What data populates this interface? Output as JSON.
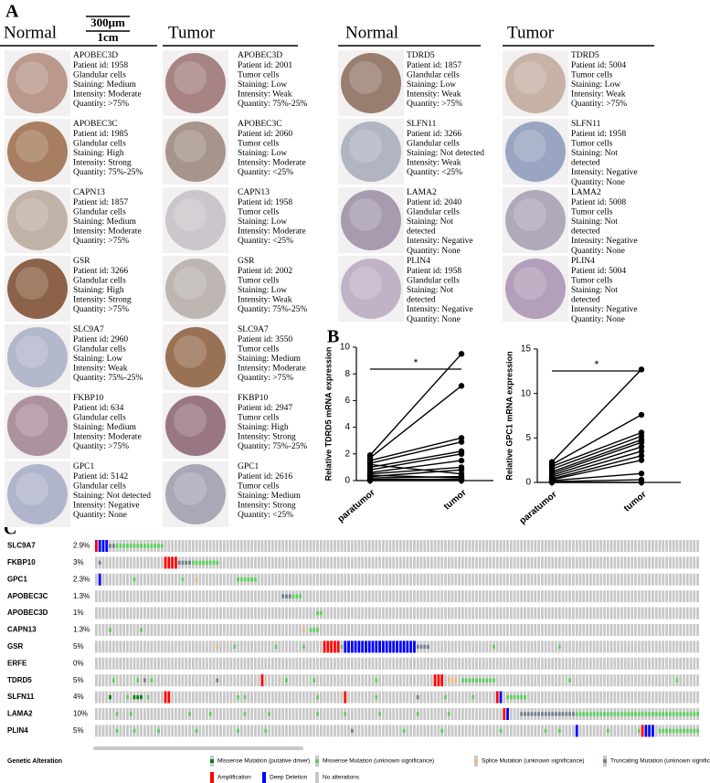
{
  "panel_a": {
    "label": "A",
    "scale_bar": [
      "300μm",
      "1cm"
    ],
    "groups": [
      {
        "header": "Normal",
        "samples": [
          {
            "color": "#b08a7a",
            "lines": [
              "APOBEC3D",
              "Patient id: 1958",
              "Glandular cells",
              "Staining: Medium",
              "Intensity: Moderate",
              "Quantity: >75%"
            ]
          },
          {
            "color": "#9a6a48",
            "lines": [
              "APOBEC3C",
              "Patient id: 1985",
              "Glandular cells",
              "Staining: High",
              "Intensity: Strong",
              "Quantity: 75%-25%"
            ]
          },
          {
            "color": "#b8a89a",
            "lines": [
              "CAPN13",
              "Patient id: 1857",
              "Glandular cells",
              "Staining: Medium",
              "Intensity: Moderate",
              "Quantity: >75%"
            ]
          },
          {
            "color": "#7a4a2a",
            "lines": [
              "GSR",
              "Patient id: 3266",
              "Glandular cells",
              "Staining: High",
              "Intensity: Strong",
              "Quantity: >75%"
            ]
          },
          {
            "color": "#a8aec4",
            "lines": [
              "SLC9A7",
              "Patient id: 2960",
              "Glandular cells",
              "Staining: Low",
              "Intensity: Weak",
              "Quantity: 75%-25%"
            ]
          },
          {
            "color": "#a08090",
            "lines": [
              "FKBP10",
              "Patient id: 634",
              "Glandular cells",
              "Staining: Medium",
              "Intensity: Moderate",
              "Quantity: >75%"
            ]
          },
          {
            "color": "#a4aac4",
            "lines": [
              "GPC1",
              "Patient id: 5142",
              "Glandular cells",
              "Staining: Not detected",
              "Intensity: Negative",
              "Quantity: None"
            ]
          }
        ]
      },
      {
        "header": "Tumor",
        "samples": [
          {
            "color": "#9a7070",
            "lines": [
              "APOBEC3D",
              "Patient id: 2001",
              "Tumor cells",
              "Staining: Low",
              "Intensity: Weak",
              "Quantity: 75%-25%"
            ]
          },
          {
            "color": "#9a8478",
            "lines": [
              "APOBEC3C",
              "Patient id: 2060",
              "Tumor cells",
              "Staining: Low",
              "Intensity: Moderate",
              "Quantity: <25%"
            ]
          },
          {
            "color": "#c4bec4",
            "lines": [
              "CAPN13",
              "Patient id: 1958",
              "Tumor cells",
              "Staining: Low",
              "Intensity: Moderate",
              "Quantity: <25%"
            ]
          },
          {
            "color": "#b4aca8",
            "lines": [
              "GSR",
              "Patient id: 2002",
              "Tumor cells",
              "Staining: Low",
              "Intensity: Weak",
              "Quantity: 75%-25%"
            ]
          },
          {
            "color": "#8a5a3a",
            "lines": [
              "SLC9A7",
              "Patient id: 3550",
              "Tumor cells",
              "Staining: Medium",
              "Intensity: Moderate",
              "Quantity: >75%"
            ]
          },
          {
            "color": "#8a6070",
            "lines": [
              "FKBP10",
              "Patient id: 2947",
              "Tumor cells",
              "Staining: High",
              "Intensity: Strong",
              "Quantity: 75%-25%"
            ]
          },
          {
            "color": "#a09aac",
            "lines": [
              "GPC1",
              "Patient id: 2616",
              "Tumor cells",
              "Staining: Medium",
              "Intensity: Strong",
              "Quantity: <25%"
            ]
          }
        ]
      },
      {
        "header": "Normal",
        "samples": [
          {
            "color": "#8a6858",
            "lines": [
              "TDRD5",
              "Patient id: 1857",
              "Glandular cells",
              "Staining: Low",
              "Intensity: Weak",
              "Quantity: >75%"
            ]
          },
          {
            "color": "#a4aab8",
            "lines": [
              "SLFN11",
              "Patient id: 3266",
              "Glandular cells",
              "Staining: Not detected",
              "Intensity: Weak",
              "Quantity: <25%"
            ]
          },
          {
            "color": "#9a8ca4",
            "lines": [
              "LAMA2",
              "Patient id: 2040",
              "Glandular cells",
              "Staining: Not",
              "detected",
              "Intensity: Negative",
              "Quantity: None"
            ]
          },
          {
            "color": "#b8a8c0",
            "lines": [
              "PLIN4",
              "Patient id: 1958",
              "Glandular cells",
              "Staining: Not",
              "detected",
              "Intensity: Negative",
              "Quantity: None"
            ]
          }
        ]
      },
      {
        "header": "Tumor",
        "samples": [
          {
            "color": "#c0a898",
            "lines": [
              "TDRD5",
              "Patient id: 5004",
              "Tumor cells",
              "Staining: Low",
              "Intensity: Weak",
              "Quantity: >75%"
            ]
          },
          {
            "color": "#8a98b8",
            "lines": [
              "SLFN11",
              "Patient id: 1958",
              "Tumor cells",
              "Staining: Not",
              "detected",
              "Intensity: Negative",
              "Quantity: None"
            ]
          },
          {
            "color": "#a49cb0",
            "lines": [
              "LAMA2",
              "Patient id: 5008",
              "Tumor cells",
              "Staining: Not",
              "detected",
              "Intensity: Negative",
              "Quantity: None"
            ]
          },
          {
            "color": "#a890b0",
            "lines": [
              "PLIN4",
              "Patient id: 5004",
              "Tumor cells",
              "Staining: Not",
              "detected",
              "Intensity: Negative",
              "Quantity: None"
            ]
          }
        ]
      }
    ]
  },
  "panel_b_label": "B",
  "chart_data": [
    {
      "type": "line",
      "ylabel": "Relative TDRD5 mRNA expression",
      "categories": [
        "paratumor",
        "tumor"
      ],
      "ylim": [
        0,
        10
      ],
      "yticks": [
        0,
        2,
        4,
        6,
        8,
        10
      ],
      "significance": "*",
      "color": "#000000",
      "series": [
        {
          "values": [
            1.9,
            9.5
          ]
        },
        {
          "values": [
            1.7,
            7.1
          ]
        },
        {
          "values": [
            1.5,
            3.2
          ]
        },
        {
          "values": [
            1.3,
            2.9
          ]
        },
        {
          "values": [
            1.0,
            2.2
          ]
        },
        {
          "values": [
            0.8,
            2.0
          ]
        },
        {
          "values": [
            0.6,
            1.5
          ]
        },
        {
          "values": [
            0.5,
            1.0
          ]
        },
        {
          "values": [
            0.3,
            0.8
          ]
        },
        {
          "values": [
            1.2,
            0.5
          ]
        },
        {
          "values": [
            0.2,
            0.3
          ]
        },
        {
          "values": [
            0.1,
            0.1
          ]
        },
        {
          "values": [
            0.0,
            0.0
          ]
        },
        {
          "values": [
            0.4,
            0.2
          ]
        }
      ]
    },
    {
      "type": "line",
      "ylabel": "Relative GPC1 mRNA expression",
      "categories": [
        "paratumor",
        "tumor"
      ],
      "ylim": [
        0,
        15
      ],
      "yticks": [
        0,
        5,
        10,
        15
      ],
      "significance": "*",
      "color": "#000000",
      "series": [
        {
          "values": [
            2.3,
            12.7
          ]
        },
        {
          "values": [
            2.0,
            7.6
          ]
        },
        {
          "values": [
            1.8,
            5.6
          ]
        },
        {
          "values": [
            1.5,
            5.2
          ]
        },
        {
          "values": [
            1.2,
            4.8
          ]
        },
        {
          "values": [
            1.0,
            4.5
          ]
        },
        {
          "values": [
            0.8,
            4.0
          ]
        },
        {
          "values": [
            0.6,
            3.5
          ]
        },
        {
          "values": [
            0.4,
            3.0
          ]
        },
        {
          "values": [
            0.3,
            2.5
          ]
        },
        {
          "values": [
            0.2,
            1.0
          ]
        },
        {
          "values": [
            0.1,
            0.3
          ]
        },
        {
          "values": [
            0.0,
            0.0
          ]
        }
      ]
    }
  ],
  "panel_c": {
    "label": "C",
    "columns": 175,
    "legend_title": "Genetic Alteration",
    "legend": [
      {
        "label": "Missense Mutation (putative driver)",
        "color": "#008000"
      },
      {
        "label": "Missense Mutation (unknown significance)",
        "color": "#5dd05d"
      },
      {
        "label": "Splice Mutation (unknown significance)",
        "color": "#f0b87b"
      },
      {
        "label": "Truncating Mutation (unknown significance)",
        "color": "#708090"
      },
      {
        "label": "Amplification",
        "color": "#ff0000"
      },
      {
        "label": "Deep Deletion",
        "color": "#0000ff"
      },
      {
        "label": "No alterations",
        "color": "#c8c8c8"
      }
    ],
    "genes": [
      {
        "name": "SLC9A7",
        "percent": "2.9%",
        "alterations": [
          [
            0,
            0,
            4
          ],
          [
            1,
            3,
            5
          ],
          [
            4,
            5,
            3
          ],
          [
            6,
            19,
            1
          ]
        ]
      },
      {
        "name": "FKBP10",
        "percent": "3%",
        "alterations": [
          [
            1,
            1,
            3
          ],
          [
            20,
            23,
            4
          ],
          [
            24,
            27,
            3
          ],
          [
            28,
            35,
            1
          ]
        ]
      },
      {
        "name": "GPC1",
        "percent": "2.3%",
        "alterations": [
          [
            1,
            1,
            5
          ],
          [
            11,
            11,
            1
          ],
          [
            25,
            25,
            1
          ],
          [
            29,
            29,
            2
          ],
          [
            41,
            46,
            1
          ]
        ]
      },
      {
        "name": "APOBEC3C",
        "percent": "1.3%",
        "alterations": [
          [
            54,
            56,
            3
          ],
          [
            57,
            59,
            1
          ]
        ]
      },
      {
        "name": "APOBEC3D",
        "percent": "1%",
        "alterations": [
          [
            64,
            65,
            1
          ]
        ]
      },
      {
        "name": "CAPN13",
        "percent": "1.3%",
        "alterations": [
          [
            4,
            4,
            1
          ],
          [
            13,
            13,
            1
          ],
          [
            60,
            60,
            2
          ],
          [
            62,
            64,
            1
          ]
        ]
      },
      {
        "name": "GSR",
        "percent": "5%",
        "alterations": [
          [
            35,
            35,
            2
          ],
          [
            40,
            40,
            1
          ],
          [
            52,
            52,
            1
          ],
          [
            60,
            60,
            1
          ],
          [
            66,
            70,
            4
          ],
          [
            71,
            71,
            1
          ],
          [
            72,
            92,
            5
          ],
          [
            93,
            96,
            3
          ],
          [
            115,
            115,
            1
          ],
          [
            134,
            134,
            1
          ]
        ]
      },
      {
        "name": "ERFE",
        "percent": "0%",
        "alterations": []
      },
      {
        "name": "TDRD5",
        "percent": "5%",
        "alterations": [
          [
            5,
            5,
            1
          ],
          [
            12,
            12,
            1
          ],
          [
            14,
            14,
            3
          ],
          [
            16,
            16,
            1
          ],
          [
            35,
            35,
            3
          ],
          [
            48,
            48,
            4
          ],
          [
            55,
            55,
            1
          ],
          [
            63,
            63,
            1
          ],
          [
            81,
            81,
            1
          ],
          [
            98,
            100,
            4
          ],
          [
            102,
            104,
            2
          ],
          [
            106,
            115,
            1
          ],
          [
            137,
            137,
            1
          ],
          [
            168,
            168,
            1
          ]
        ]
      },
      {
        "name": "SLFN11",
        "percent": "4%",
        "alterations": [
          [
            4,
            4,
            0
          ],
          [
            9,
            9,
            1
          ],
          [
            11,
            13,
            0
          ],
          [
            15,
            15,
            1
          ],
          [
            20,
            21,
            4
          ],
          [
            41,
            41,
            1
          ],
          [
            43,
            43,
            1
          ],
          [
            64,
            64,
            1
          ],
          [
            72,
            72,
            4
          ],
          [
            81,
            81,
            1
          ],
          [
            93,
            93,
            3
          ],
          [
            101,
            101,
            1
          ],
          [
            109,
            109,
            1
          ],
          [
            116,
            116,
            4
          ],
          [
            117,
            117,
            5
          ],
          [
            119,
            124,
            1
          ]
        ]
      },
      {
        "name": "LAMA2",
        "percent": "10%",
        "alterations": [
          [
            6,
            6,
            1
          ],
          [
            10,
            10,
            1
          ],
          [
            27,
            27,
            1
          ],
          [
            33,
            33,
            1
          ],
          [
            43,
            43,
            1
          ],
          [
            50,
            50,
            1
          ],
          [
            64,
            64,
            1
          ],
          [
            72,
            72,
            1
          ],
          [
            82,
            82,
            1
          ],
          [
            93,
            93,
            1
          ],
          [
            102,
            102,
            1
          ],
          [
            118,
            118,
            4
          ],
          [
            119,
            119,
            5
          ],
          [
            123,
            138,
            3
          ],
          [
            139,
            174,
            1
          ]
        ]
      },
      {
        "name": "PLIN4",
        "percent": "5%",
        "alterations": [
          [
            6,
            6,
            1
          ],
          [
            11,
            11,
            1
          ],
          [
            18,
            18,
            1
          ],
          [
            29,
            29,
            1
          ],
          [
            41,
            41,
            1
          ],
          [
            49,
            49,
            1
          ],
          [
            74,
            74,
            3
          ],
          [
            89,
            89,
            1
          ],
          [
            100,
            100,
            1
          ],
          [
            117,
            117,
            1
          ],
          [
            130,
            130,
            1
          ],
          [
            134,
            134,
            1
          ],
          [
            139,
            139,
            5
          ],
          [
            148,
            148,
            1
          ],
          [
            157,
            157,
            1
          ],
          [
            158,
            158,
            4
          ],
          [
            159,
            161,
            5
          ],
          [
            163,
            174,
            1
          ]
        ]
      }
    ]
  }
}
